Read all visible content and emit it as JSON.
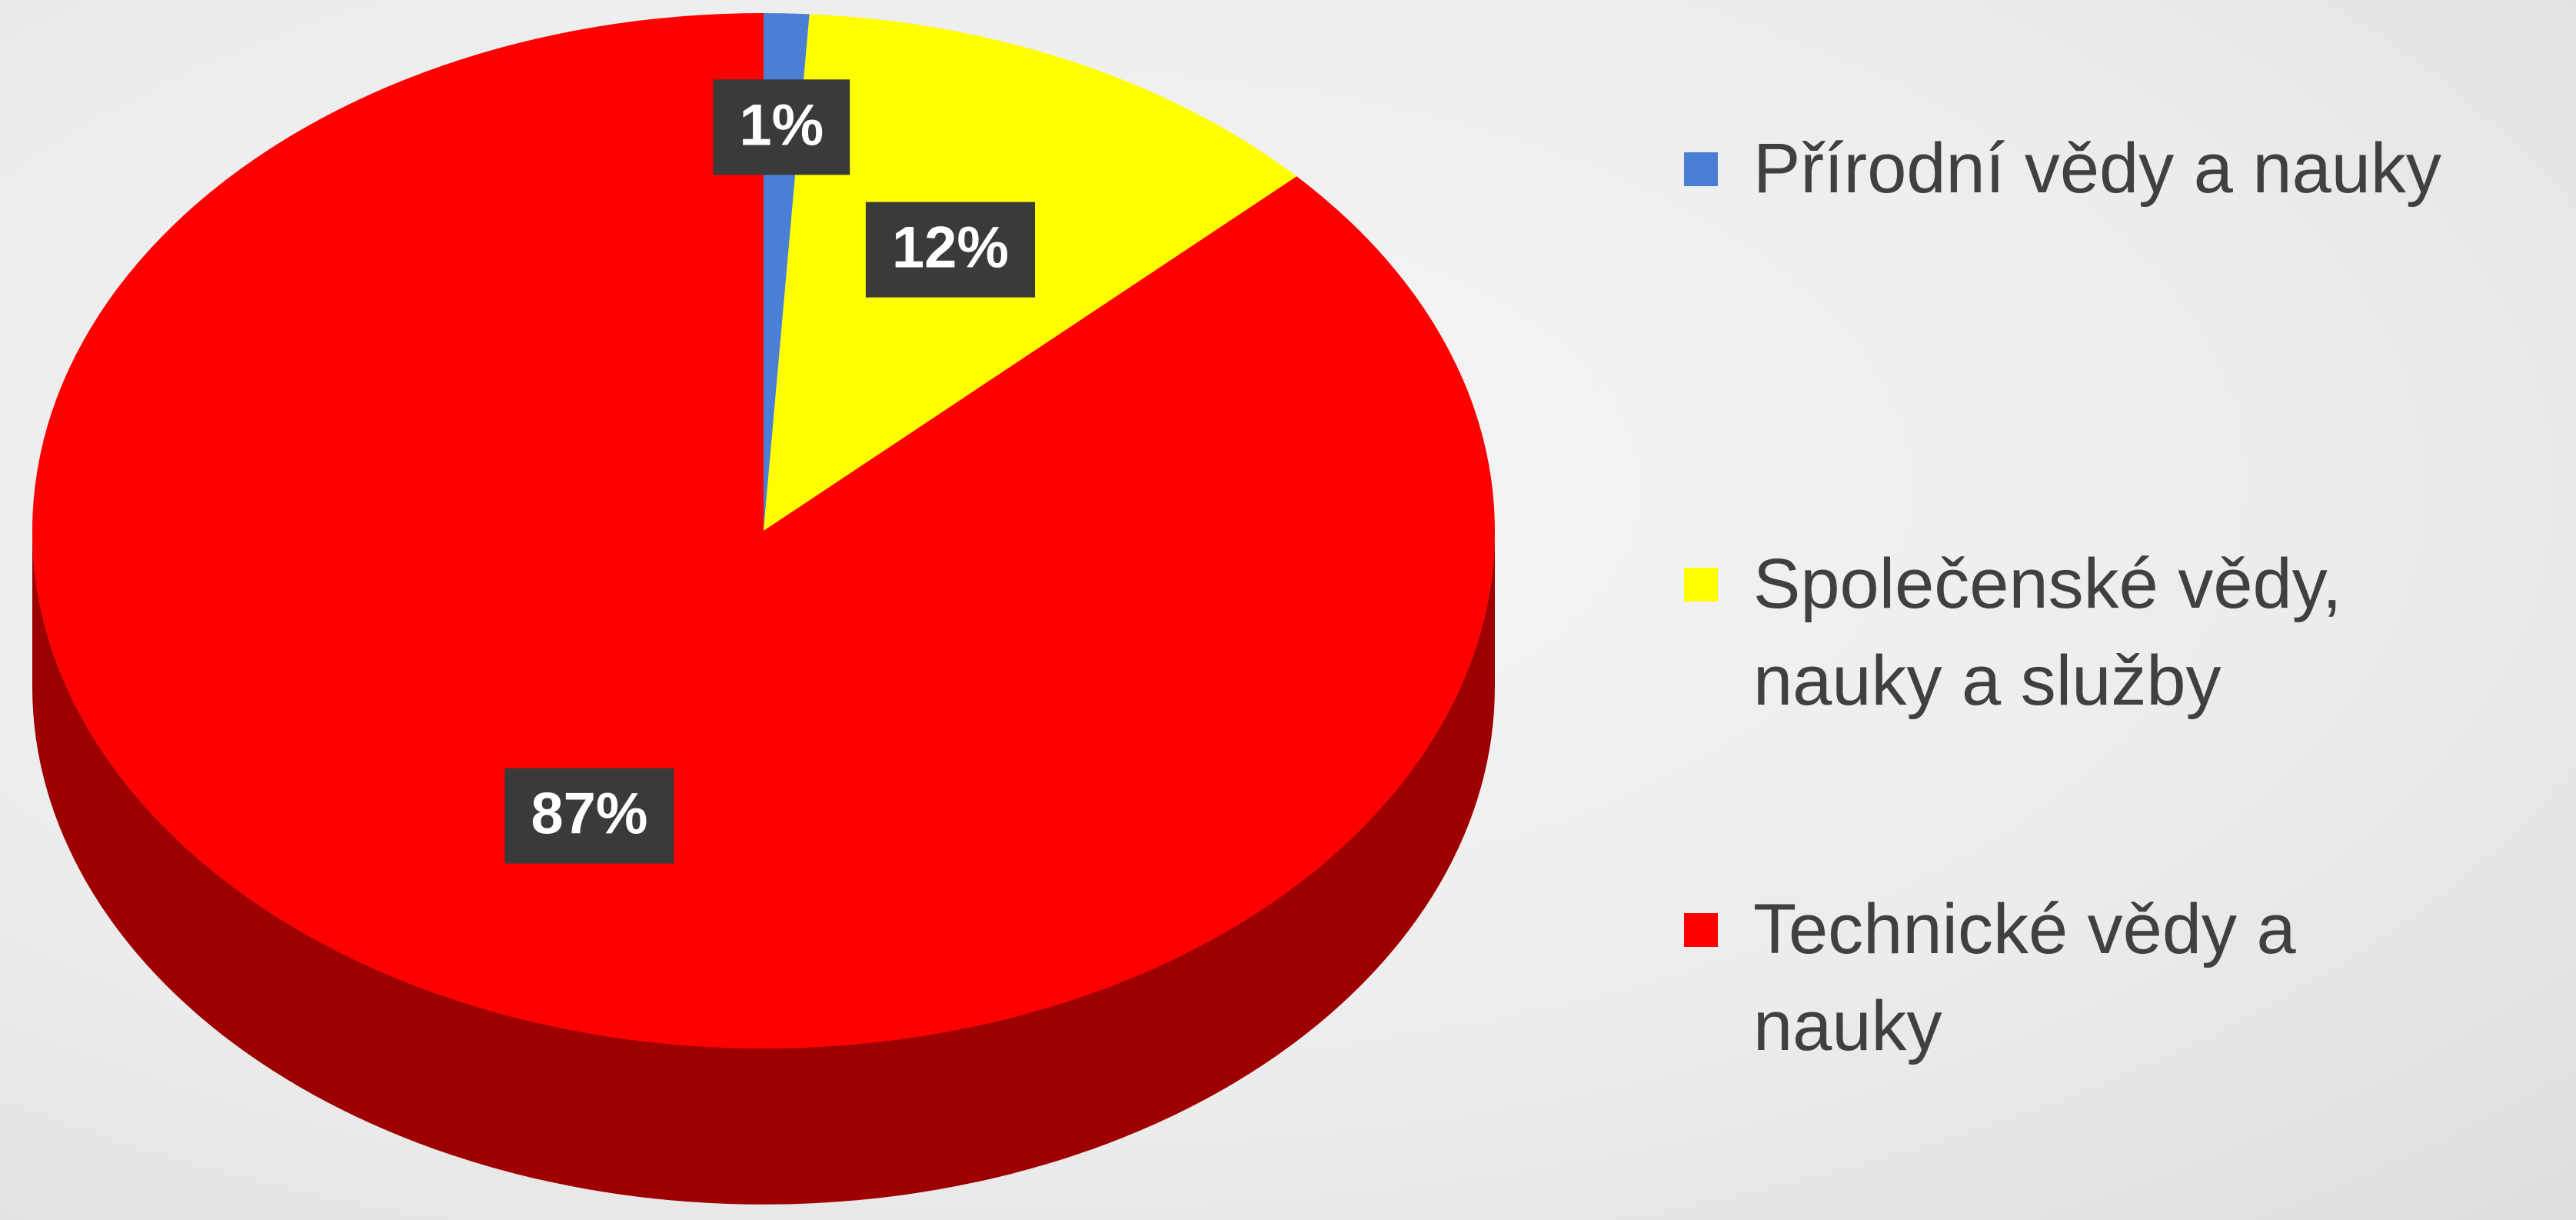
{
  "chart_data": {
    "type": "pie",
    "categories": [
      "Přírodní vědy a nauky",
      "Společenské vědy, nauky a služby",
      "Technické vědy a nauky"
    ],
    "values": [
      1,
      12,
      87
    ],
    "value_labels": [
      "1%",
      "12%",
      "87%"
    ],
    "colors": [
      "#4a7fd4",
      "#ffff00",
      "#ff0000"
    ]
  }
}
